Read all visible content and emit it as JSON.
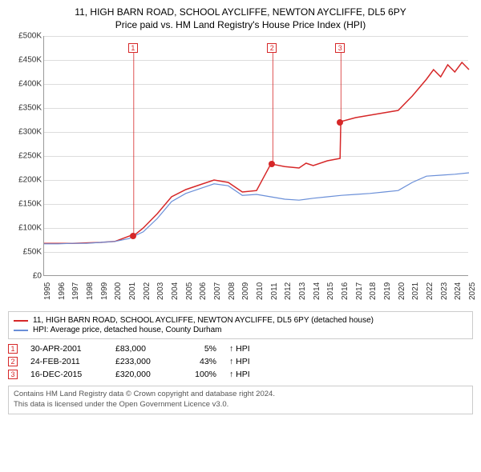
{
  "title": {
    "line1": "11, HIGH BARN ROAD, SCHOOL AYCLIFFE, NEWTON AYCLIFFE, DL5 6PY",
    "line2": "Price paid vs. HM Land Registry's House Price Index (HPI)"
  },
  "chart": {
    "type": "line",
    "background_color": "#ffffff",
    "grid_color": "#dddddd",
    "axis_color": "#999999",
    "x_years": [
      1995,
      1996,
      1997,
      1998,
      1999,
      2000,
      2001,
      2002,
      2003,
      2004,
      2005,
      2006,
      2007,
      2008,
      2009,
      2010,
      2011,
      2012,
      2013,
      2014,
      2015,
      2016,
      2017,
      2018,
      2019,
      2020,
      2021,
      2022,
      2023,
      2024,
      2025
    ],
    "ylim": [
      0,
      500000
    ],
    "ytick_step": 50000,
    "ytick_labels": [
      "£0",
      "£50K",
      "£100K",
      "£150K",
      "£200K",
      "£250K",
      "£300K",
      "£350K",
      "£400K",
      "£450K",
      "£500K"
    ],
    "label_fontsize": 10,
    "series": [
      {
        "name": "property",
        "label": "11, HIGH BARN ROAD, SCHOOL AYCLIFFE, NEWTON AYCLIFFE, DL5 6PY (detached house)",
        "color": "#d62728",
        "line_width": 1.5,
        "data": [
          [
            1995,
            68000
          ],
          [
            1996,
            68000
          ],
          [
            1997,
            68000
          ],
          [
            1998,
            69000
          ],
          [
            1999,
            70000
          ],
          [
            2000,
            72000
          ],
          [
            2001,
            83000
          ],
          [
            2001.5,
            88000
          ],
          [
            2002,
            100000
          ],
          [
            2003,
            130000
          ],
          [
            2004,
            165000
          ],
          [
            2005,
            180000
          ],
          [
            2006,
            190000
          ],
          [
            2007,
            200000
          ],
          [
            2008,
            195000
          ],
          [
            2009,
            175000
          ],
          [
            2010,
            178000
          ],
          [
            2011,
            233000
          ],
          [
            2011.1,
            233000
          ],
          [
            2012,
            228000
          ],
          [
            2013,
            225000
          ],
          [
            2013.5,
            235000
          ],
          [
            2014,
            230000
          ],
          [
            2015,
            240000
          ],
          [
            2015.9,
            245000
          ],
          [
            2015.95,
            320000
          ],
          [
            2016,
            322000
          ],
          [
            2017,
            330000
          ],
          [
            2018,
            335000
          ],
          [
            2019,
            340000
          ],
          [
            2020,
            345000
          ],
          [
            2021,
            375000
          ],
          [
            2022,
            410000
          ],
          [
            2022.5,
            430000
          ],
          [
            2023,
            415000
          ],
          [
            2023.5,
            440000
          ],
          [
            2024,
            425000
          ],
          [
            2024.5,
            445000
          ],
          [
            2025,
            430000
          ]
        ]
      },
      {
        "name": "hpi",
        "label": "HPI: Average price, detached house, County Durham",
        "color": "#6a8fd8",
        "line_width": 1.2,
        "data": [
          [
            1995,
            67000
          ],
          [
            1996,
            67000
          ],
          [
            1997,
            68000
          ],
          [
            1998,
            68000
          ],
          [
            1999,
            70000
          ],
          [
            2000,
            72000
          ],
          [
            2001,
            78000
          ],
          [
            2002,
            92000
          ],
          [
            2003,
            120000
          ],
          [
            2004,
            155000
          ],
          [
            2005,
            172000
          ],
          [
            2006,
            182000
          ],
          [
            2007,
            192000
          ],
          [
            2008,
            188000
          ],
          [
            2009,
            168000
          ],
          [
            2010,
            170000
          ],
          [
            2011,
            165000
          ],
          [
            2012,
            160000
          ],
          [
            2013,
            158000
          ],
          [
            2014,
            162000
          ],
          [
            2015,
            165000
          ],
          [
            2016,
            168000
          ],
          [
            2017,
            170000
          ],
          [
            2018,
            172000
          ],
          [
            2019,
            175000
          ],
          [
            2020,
            178000
          ],
          [
            2021,
            195000
          ],
          [
            2022,
            208000
          ],
          [
            2023,
            210000
          ],
          [
            2024,
            212000
          ],
          [
            2025,
            215000
          ]
        ]
      }
    ],
    "markers": [
      {
        "num": "1",
        "x": 2001.33,
        "y": 83000,
        "box_y": 475000
      },
      {
        "num": "2",
        "x": 2011.15,
        "y": 233000,
        "box_y": 475000
      },
      {
        "num": "3",
        "x": 2015.96,
        "y": 320000,
        "box_y": 475000
      }
    ],
    "marker_color": "#d62728",
    "marker_dot_color": "#d62728"
  },
  "legend": {
    "items": [
      {
        "color": "#d62728",
        "label": "11, HIGH BARN ROAD, SCHOOL AYCLIFFE, NEWTON AYCLIFFE, DL5 6PY (detached house)"
      },
      {
        "color": "#6a8fd8",
        "label": "HPI: Average price, detached house, County Durham"
      }
    ]
  },
  "events": [
    {
      "num": "1",
      "date": "30-APR-2001",
      "price": "£83,000",
      "pct": "5%",
      "arrow": "↑",
      "suffix": "HPI"
    },
    {
      "num": "2",
      "date": "24-FEB-2011",
      "price": "£233,000",
      "pct": "43%",
      "arrow": "↑",
      "suffix": "HPI"
    },
    {
      "num": "3",
      "date": "16-DEC-2015",
      "price": "£320,000",
      "pct": "100%",
      "arrow": "↑",
      "suffix": "HPI"
    }
  ],
  "footer": {
    "line1": "Contains HM Land Registry data © Crown copyright and database right 2024.",
    "line2": "This data is licensed under the Open Government Licence v3.0."
  }
}
